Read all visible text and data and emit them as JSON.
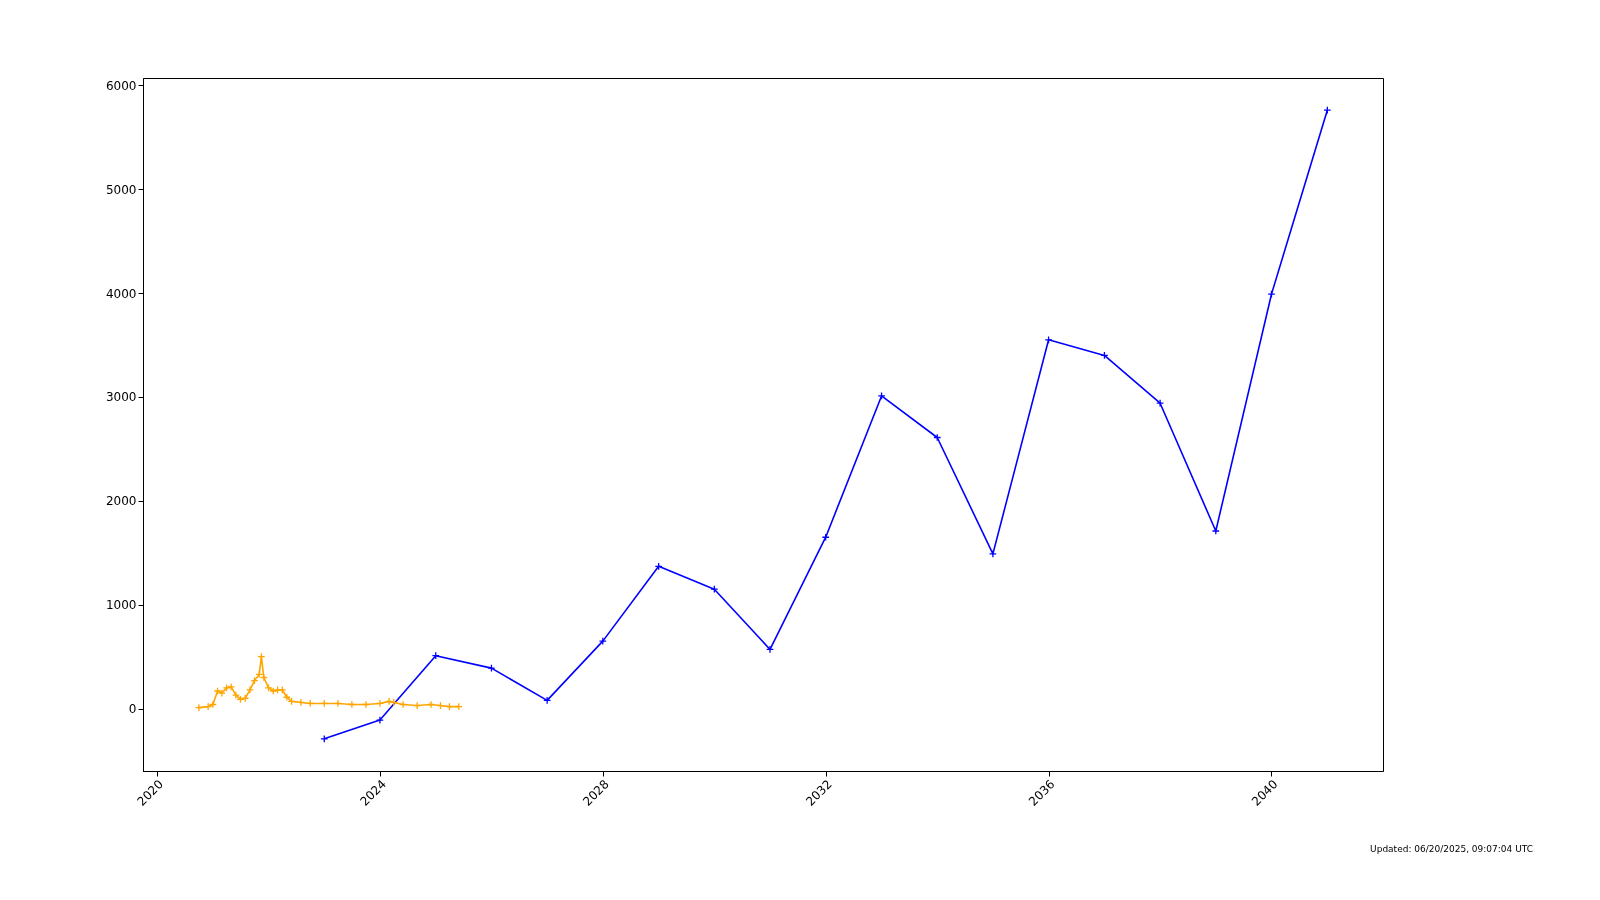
{
  "chart_data": {
    "type": "line",
    "xlim": [
      "2019-10",
      "2042-01"
    ],
    "xticks": [
      "2020",
      "2024",
      "2028",
      "2032",
      "2036",
      "2040"
    ],
    "ylim": [
      -600,
      6070
    ],
    "yticks": [
      0,
      1000,
      2000,
      3000,
      4000,
      5000,
      6000
    ],
    "grid": false,
    "marker": "cross",
    "line_style": "solid",
    "annotations": [
      "Updated: 06/20/2025, 09:07:04 UTC"
    ],
    "series": [
      {
        "color": "#ffa500",
        "x": [
          "2020-10",
          "2020-12",
          "2021-01",
          "2021-02",
          "2021-03",
          "2021-04",
          "2021-05",
          "2021-06",
          "2021-07",
          "2021-08",
          "2021-09",
          "2021-10",
          "2021-11",
          "2021-11-15",
          "2021-12",
          "2022-01",
          "2022-02",
          "2022-03",
          "2022-04",
          "2022-05",
          "2022-06",
          "2022-08",
          "2022-10",
          "2023-01",
          "2023-04",
          "2023-07",
          "2023-10",
          "2024-01",
          "2024-03",
          "2024-04",
          "2024-06",
          "2024-09",
          "2024-12",
          "2025-02",
          "2025-04",
          "2025-06"
        ],
        "values": [
          10,
          20,
          40,
          170,
          150,
          200,
          210,
          130,
          90,
          100,
          180,
          270,
          330,
          500,
          300,
          200,
          170,
          180,
          180,
          110,
          70,
          60,
          50,
          50,
          50,
          40,
          40,
          50,
          70,
          60,
          40,
          30,
          40,
          30,
          20,
          20
        ]
      },
      {
        "color": "#0000ff",
        "x": [
          "2023",
          "2024",
          "2025",
          "2026",
          "2027",
          "2028",
          "2029",
          "2030",
          "2031",
          "2032",
          "2033",
          "2034",
          "2035",
          "2036",
          "2037",
          "2038",
          "2039",
          "2040",
          "2041"
        ],
        "values": [
          -290,
          -110,
          510,
          390,
          80,
          650,
          1370,
          1150,
          570,
          1650,
          3010,
          2610,
          1490,
          3550,
          3400,
          2940,
          1710,
          3990,
          5760
        ]
      }
    ]
  }
}
